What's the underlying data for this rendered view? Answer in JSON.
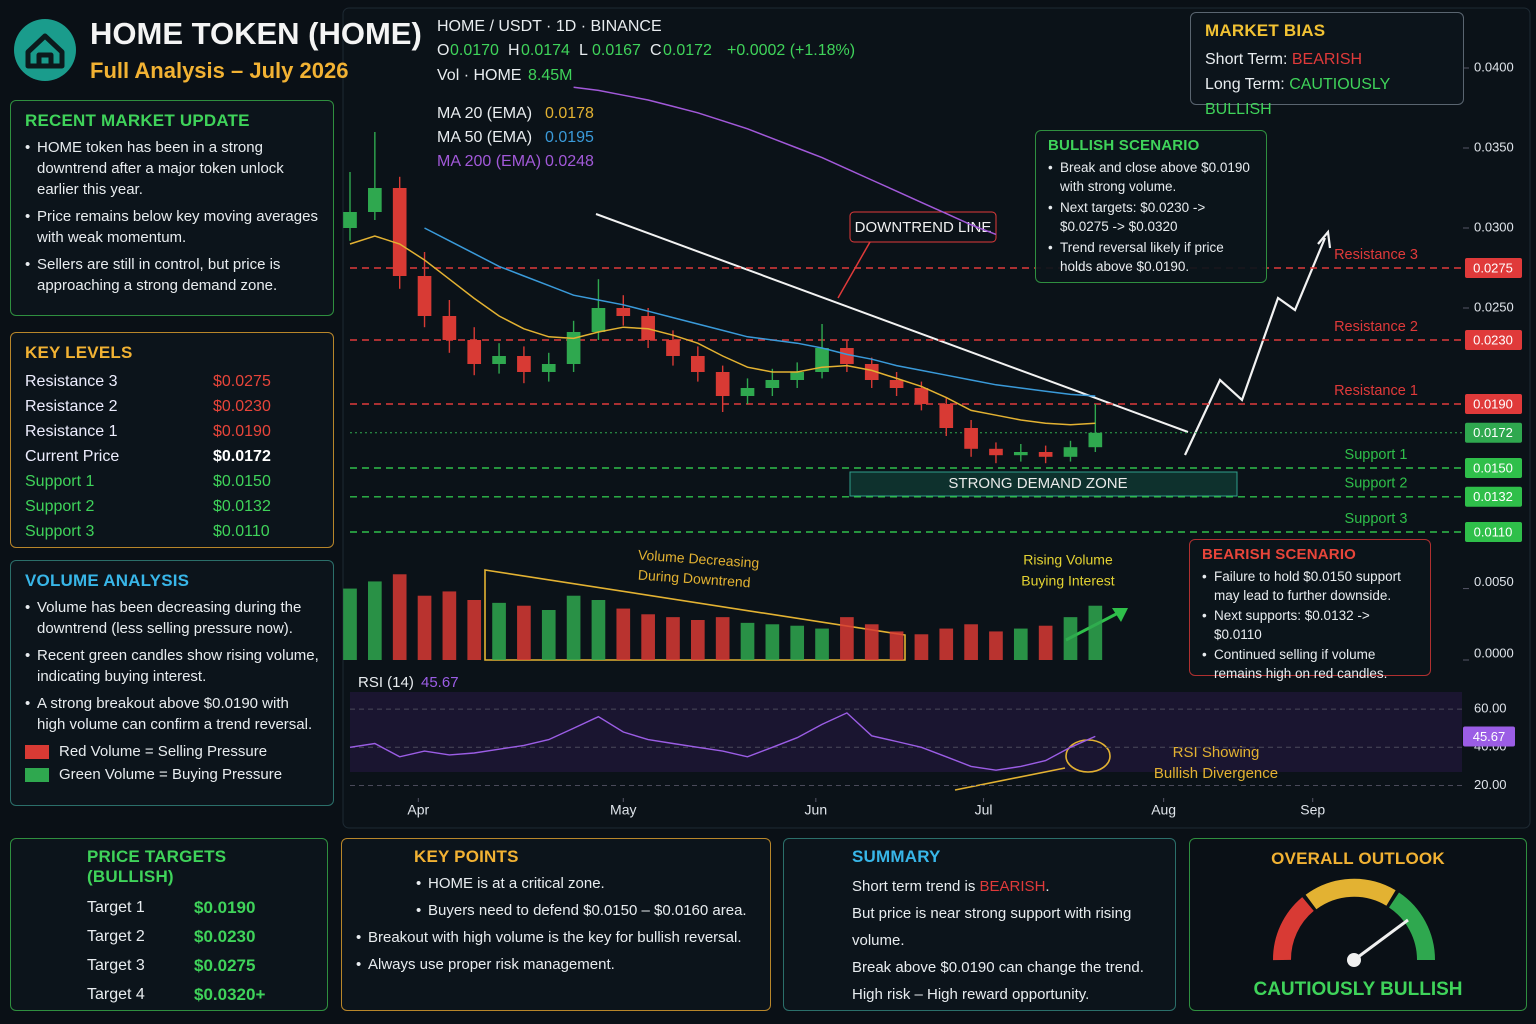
{
  "header": {
    "title": "HOME TOKEN (HOME)",
    "subtitle": "Full Analysis – July 2026"
  },
  "market_update": {
    "title": "RECENT MARKET UPDATE",
    "bullets": [
      "HOME token has been in a strong downtrend after a major token unlock earlier this year.",
      "Price remains below key moving averages with weak momentum.",
      "Sellers are still in control, but price is approaching a strong demand zone."
    ]
  },
  "key_levels": {
    "title": "KEY LEVELS",
    "rows": [
      [
        "Resistance 3",
        "$0.0275"
      ],
      [
        "Resistance 2",
        "$0.0230"
      ],
      [
        "Resistance 1",
        "$0.0190"
      ],
      [
        "Current Price",
        "$0.0172"
      ],
      [
        "Support 1",
        "$0.0150"
      ],
      [
        "Support 2",
        "$0.0132"
      ],
      [
        "Support 3",
        "$0.0110"
      ]
    ]
  },
  "volume_analysis": {
    "title": "VOLUME ANALYSIS",
    "bullets": [
      "Volume has been decreasing during the downtrend (less selling pressure now).",
      "Recent green candles show rising volume, indicating buying interest.",
      "A strong breakout above $0.0190 with high volume can confirm a trend reversal."
    ],
    "legend": [
      "Red Volume = Selling Pressure",
      "Green Volume = Buying Pressure"
    ]
  },
  "market_bias": {
    "title": "MARKET BIAS",
    "rows": [
      {
        "label": "Short Term:",
        "value": "BEARISH"
      },
      {
        "label": "Long Term:",
        "value": "CAUTIOUSLY BULLISH"
      }
    ]
  },
  "bullish_scenario": {
    "title": "BULLISH SCENARIO",
    "bullets": [
      "Break and close above $0.0190 with strong volume.",
      "Next targets: $0.0230 -> $0.0275 -> $0.0320",
      "Trend reversal likely if price holds above $0.0190."
    ]
  },
  "bearish_scenario": {
    "title": "BEARISH SCENARIO",
    "bullets": [
      "Failure to hold $0.0150 support may lead to further downside.",
      "Next supports: $0.0132 -> $0.0110",
      "Continued selling if volume remains high on red candles."
    ]
  },
  "price_targets": {
    "title": "PRICE TARGETS (BULLISH)",
    "rows": [
      [
        "Target 1",
        "$0.0190"
      ],
      [
        "Target 2",
        "$0.0230"
      ],
      [
        "Target 3",
        "$0.0275"
      ],
      [
        "Target 4",
        "$0.0320+"
      ]
    ]
  },
  "key_points": {
    "title": "KEY POINTS",
    "bullets": [
      "HOME is at a critical zone.",
      "Buyers need to defend $0.0150 – $0.0160 area.",
      "Breakout with high volume is the key for bullish reversal.",
      "Always use proper risk management."
    ]
  },
  "summary": {
    "title": "SUMMARY",
    "first": {
      "prefix": "Short term trend is ",
      "highlight": "BEARISH",
      "suffix": "."
    },
    "lines": [
      "But price is near strong support with rising volume.",
      "Break above $0.0190 can change the trend.",
      "High risk – High reward opportunity."
    ]
  },
  "outlook": {
    "title": "OVERALL OUTLOOK",
    "label": "CAUTIOUSLY BULLISH"
  },
  "chart_data": [
    {
      "type": "candlestick",
      "info": {
        "symbol": "HOME / USDT · 1D · BINANCE",
        "ohlc": [
          {
            "label": "O",
            "value": "0.0170"
          },
          {
            "label": "H",
            "value": "0.0174"
          },
          {
            "label": "L",
            "value": "0.0167"
          },
          {
            "label": "C",
            "value": "0.0172"
          }
        ],
        "change": "+0.0002 (+1.18%)",
        "volume_label": "Vol · HOME",
        "volume_value": "8.45M"
      },
      "x": [
        0,
        4,
        8,
        12,
        16,
        20,
        24,
        28,
        32,
        36,
        40,
        44,
        48,
        52,
        56,
        60,
        64,
        68,
        72,
        76,
        80,
        84,
        88,
        92,
        96,
        100,
        104,
        108,
        112,
        116,
        120
      ],
      "xlim": [
        0,
        180
      ],
      "xticks": [
        {
          "value": 11,
          "label": "Apr"
        },
        {
          "value": 44,
          "label": "May"
        },
        {
          "value": 75,
          "label": "Jun"
        },
        {
          "value": 102,
          "label": "Jul"
        },
        {
          "value": 131,
          "label": "Aug"
        },
        {
          "value": 155,
          "label": "Sep"
        }
      ],
      "open": [
        0.03,
        0.031,
        0.0325,
        0.027,
        0.0245,
        0.023,
        0.0215,
        0.022,
        0.021,
        0.0215,
        0.0235,
        0.025,
        0.0245,
        0.023,
        0.022,
        0.021,
        0.0195,
        0.02,
        0.0205,
        0.021,
        0.0225,
        0.0215,
        0.0205,
        0.02,
        0.019,
        0.0175,
        0.0162,
        0.0158,
        0.016,
        0.0157,
        0.0163
      ],
      "high": [
        0.0335,
        0.036,
        0.0332,
        0.0285,
        0.0255,
        0.0238,
        0.0228,
        0.0226,
        0.0222,
        0.0242,
        0.0268,
        0.0258,
        0.025,
        0.0236,
        0.0226,
        0.0214,
        0.0206,
        0.0212,
        0.0216,
        0.024,
        0.023,
        0.0219,
        0.021,
        0.0204,
        0.0194,
        0.018,
        0.0166,
        0.0165,
        0.0164,
        0.0167,
        0.019
      ],
      "low": [
        0.0292,
        0.0305,
        0.0262,
        0.0238,
        0.0222,
        0.0208,
        0.0209,
        0.0203,
        0.0204,
        0.021,
        0.023,
        0.0239,
        0.0225,
        0.0214,
        0.0204,
        0.0185,
        0.019,
        0.0195,
        0.02,
        0.0206,
        0.021,
        0.02,
        0.0195,
        0.0186,
        0.017,
        0.0157,
        0.0153,
        0.0154,
        0.0153,
        0.0154,
        0.016
      ],
      "close": [
        0.031,
        0.0325,
        0.027,
        0.0245,
        0.023,
        0.0215,
        0.022,
        0.021,
        0.0215,
        0.0235,
        0.025,
        0.0245,
        0.023,
        0.022,
        0.021,
        0.0195,
        0.02,
        0.0205,
        0.021,
        0.0225,
        0.0215,
        0.0205,
        0.02,
        0.019,
        0.0175,
        0.0162,
        0.0158,
        0.016,
        0.0157,
        0.0163,
        0.0172
      ],
      "up_color": "#2fa84f",
      "down_color": "#d83a34",
      "ylim": [
        0.0105,
        0.0405
      ],
      "yticks": [
        {
          "value": 0.04,
          "label": "0.0400"
        },
        {
          "value": 0.035,
          "label": "0.0350"
        },
        {
          "value": 0.03,
          "label": "0.0300"
        },
        {
          "value": 0.025,
          "label": "0.0250"
        }
      ],
      "series": [
        {
          "name": "MA 20 (EMA)",
          "color": "#e3b232",
          "last_label": "0.0178",
          "values": [
            0.029,
            0.0295,
            0.029,
            0.028,
            0.0268,
            0.0256,
            0.0245,
            0.0237,
            0.0232,
            0.0231,
            0.0235,
            0.0238,
            0.0237,
            0.0233,
            0.0228,
            0.022,
            0.0213,
            0.021,
            0.021,
            0.0213,
            0.0214,
            0.0211,
            0.0206,
            0.0201,
            0.0194,
            0.0186,
            0.0183,
            0.018,
            0.0178,
            0.0177,
            0.0178
          ]
        },
        {
          "name": "MA 50 (EMA)",
          "color": "#3a9ad9",
          "last_label": "0.0195",
          "values": [
            null,
            null,
            null,
            0.03,
            0.0292,
            0.0284,
            0.0276,
            0.027,
            0.0264,
            0.0258,
            0.0255,
            0.0252,
            0.0248,
            0.0244,
            0.024,
            0.0236,
            0.0232,
            0.023,
            0.0228,
            0.0225,
            0.0221,
            0.0218,
            0.0214,
            0.0211,
            0.0208,
            0.0205,
            0.0202,
            0.02,
            0.0198,
            0.0196,
            0.0195
          ]
        },
        {
          "name": "MA 200 (EMA)",
          "color": "#a259d9",
          "last_label": "0.0248",
          "values": [
            null,
            null,
            null,
            null,
            null,
            null,
            null,
            null,
            null,
            0.0388,
            0.0386,
            0.0383,
            0.038,
            0.0376,
            0.0372,
            0.0367,
            0.0362,
            0.0356,
            0.035,
            0.0344,
            0.0337,
            0.033,
            0.0323,
            0.0316,
            0.0309,
            0.0302,
            0.0296,
            null,
            null,
            null,
            null
          ]
        }
      ],
      "volume": [
        0.005,
        0.0055,
        0.006,
        0.0045,
        0.0048,
        0.0042,
        0.004,
        0.0038,
        0.0035,
        0.0045,
        0.0042,
        0.0036,
        0.0032,
        0.003,
        0.0028,
        0.003,
        0.0026,
        0.0025,
        0.0024,
        0.0022,
        0.003,
        0.0025,
        0.002,
        0.0018,
        0.0022,
        0.0025,
        0.002,
        0.0022,
        0.0024,
        0.003,
        0.0038
      ],
      "y2lim": [
        0,
        0.007
      ],
      "y2ticks": [
        {
          "value": 0.005,
          "label": "0.0050"
        },
        {
          "value": 0,
          "label": "0.0000"
        }
      ],
      "levels": [
        {
          "name": "Resistance 3",
          "value": 0.0275,
          "label": "0.0275",
          "color": "#e03a3a"
        },
        {
          "name": "Resistance 2",
          "value": 0.023,
          "label": "0.0230",
          "color": "#e03a3a"
        },
        {
          "name": "Resistance 1",
          "value": 0.019,
          "label": "0.0190",
          "color": "#e03a3a"
        },
        {
          "name": "Support 1",
          "value": 0.015,
          "label": "0.0150",
          "color": "#2fbf4a"
        },
        {
          "name": "Support 2",
          "value": 0.0132,
          "label": "0.0132",
          "color": "#2fbf4a"
        },
        {
          "name": "Support 3",
          "value": 0.011,
          "label": "0.0110",
          "color": "#2fbf4a"
        }
      ],
      "current": {
        "value": 0.0172,
        "label": "0.0172",
        "color": "#2fa84f"
      },
      "grid": false,
      "annotations": {
        "downtrend": "DOWNTREND LINE",
        "demand_zone": "STRONG DEMAND ZONE",
        "volume_decreasing": [
          "Volume Decreasing",
          "During Downtrend"
        ],
        "rising_volume": [
          "Rising Volume",
          "Buying Interest"
        ]
      }
    },
    {
      "type": "line",
      "title": "RSI (14)",
      "value_label": "45.67",
      "color": "#9b5de5",
      "x": [
        0,
        4,
        8,
        12,
        16,
        20,
        24,
        28,
        32,
        36,
        40,
        44,
        48,
        52,
        56,
        60,
        64,
        68,
        72,
        76,
        80,
        84,
        88,
        92,
        96,
        100,
        104,
        108,
        112,
        116,
        120
      ],
      "values": [
        40,
        42,
        35,
        38,
        36,
        37,
        39,
        41,
        44,
        50,
        56,
        48,
        44,
        42,
        40,
        38,
        35,
        40,
        45,
        52,
        58,
        46,
        43,
        40,
        35,
        30,
        28,
        30,
        33,
        40,
        45.67
      ],
      "ylim": [
        15,
        70
      ],
      "yticks": [
        {
          "value": 60,
          "label": "60.00"
        },
        {
          "value": 40,
          "label": "40.00"
        },
        {
          "value": 20,
          "label": "20.00"
        }
      ],
      "annotation": [
        "RSI Showing",
        "Bullish Divergence"
      ]
    }
  ]
}
